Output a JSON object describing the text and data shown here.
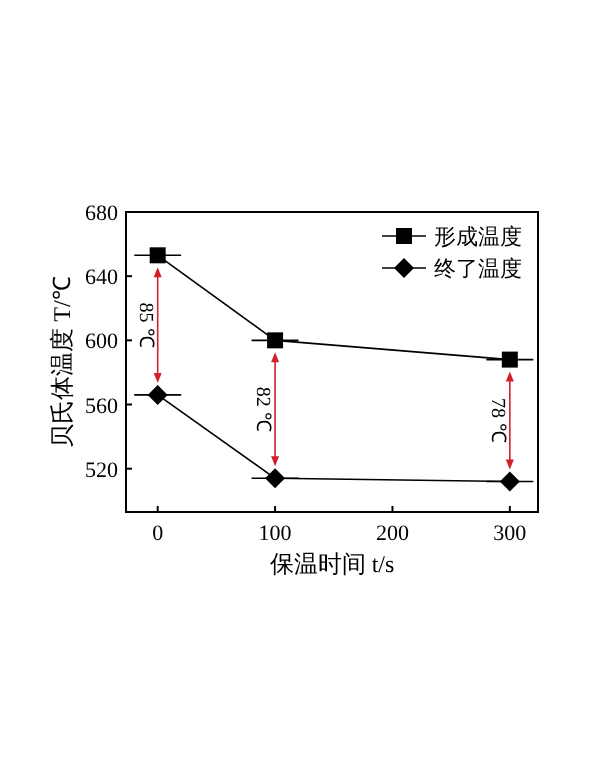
{
  "chart_data": {
    "type": "line",
    "xlabel": "保温时间 t/s",
    "ylabel": "贝氏体温度 T/℃",
    "x": [
      0,
      100,
      300
    ],
    "series": [
      {
        "name": "形成温度",
        "color": "#000000",
        "marker": "square",
        "values": [
          653,
          600,
          588
        ],
        "xerrors": [
          20,
          20,
          20
        ]
      },
      {
        "name": "终了温度",
        "color": "#000000",
        "marker": "diamond",
        "values": [
          566,
          514,
          512
        ],
        "xerrors": [
          20,
          20,
          20
        ]
      }
    ],
    "xlim": [
      -27,
      324
    ],
    "xticks": [
      0,
      100,
      200,
      300
    ],
    "ylim": [
      493,
      680
    ],
    "yticks": [
      520,
      560,
      600,
      640,
      680
    ],
    "annotations": [
      "85 ℃",
      "82 ℃",
      "78 ℃"
    ],
    "legend": "top right",
    "grid": false
  }
}
